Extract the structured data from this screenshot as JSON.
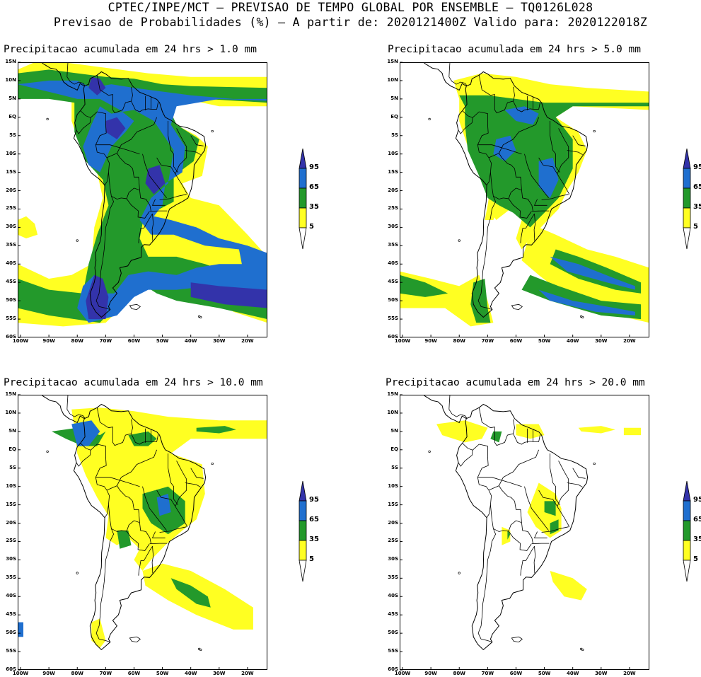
{
  "header": {
    "line1": "CPTEC/INPE/MCT – PREVISAO DE TEMPO GLOBAL POR ENSEMBLE – TQ0126L028",
    "line2": "Previsao de Probabilidades (%) –  A partir de: 2020121400Z  Valido para: 2020122018Z"
  },
  "map_axes": {
    "y_ticks": [
      "15N",
      "10N",
      "5N",
      "EQ",
      "5S",
      "10S",
      "15S",
      "20S",
      "25S",
      "30S",
      "35S",
      "40S",
      "45S",
      "50S",
      "55S",
      "60S"
    ],
    "x_ticks": [
      "100W",
      "90W",
      "80W",
      "70W",
      "60W",
      "50W",
      "40W",
      "30W",
      "20W"
    ]
  },
  "colorbar": {
    "levels": [
      "95",
      "65",
      "35",
      "5"
    ],
    "colors": [
      "#3333aa",
      "#1f6fcf",
      "#23992b",
      "#ffff22"
    ]
  },
  "panels": [
    {
      "id": "p1",
      "title": "Precipitacao acumulada em 24 hrs > 1.0 mm",
      "threshold_mm": 1.0
    },
    {
      "id": "p2",
      "title": "Precipitacao acumulada em 24 hrs > 5.0 mm",
      "threshold_mm": 5.0
    },
    {
      "id": "p3",
      "title": "Precipitacao acumulada em 24 hrs > 10.0 mm",
      "threshold_mm": 10.0
    },
    {
      "id": "p4",
      "title": "Precipitacao acumulada em 24 hrs > 20.0 mm",
      "threshold_mm": 20.0
    }
  ]
}
